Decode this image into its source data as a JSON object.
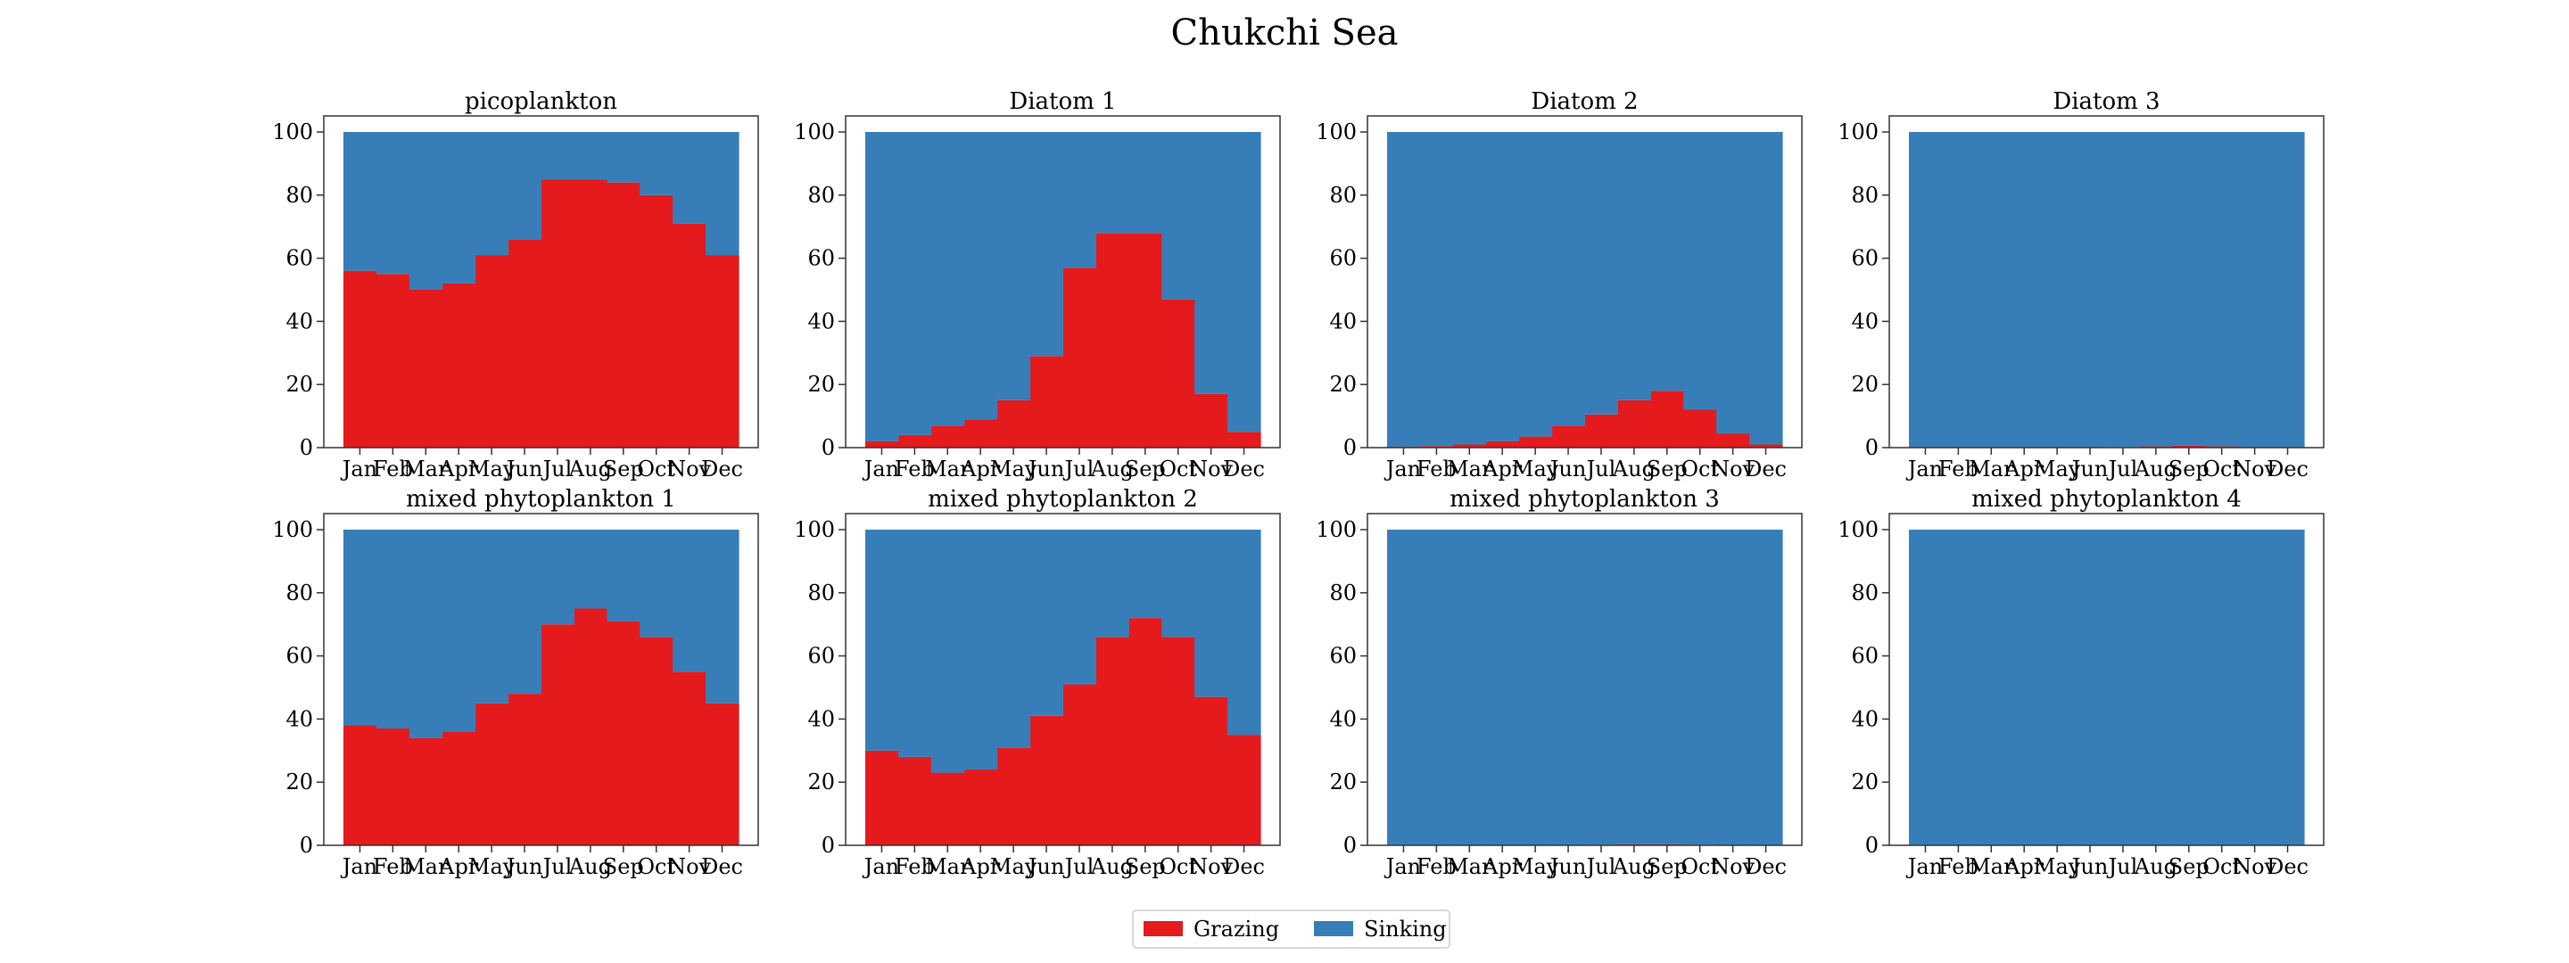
{
  "figure": {
    "title": "Chukchi Sea"
  },
  "legend": {
    "placement": "bottom-center",
    "items": [
      {
        "label": "Grazing",
        "color": "#e41a1c"
      },
      {
        "label": "Sinking",
        "color": "#377eb8"
      }
    ]
  },
  "chart_data": [
    {
      "type": "bar",
      "stacked": true,
      "title": "picoplankton",
      "categories": [
        "Jan",
        "Feb",
        "Mar",
        "Apr",
        "May",
        "Jun",
        "Jul",
        "Aug",
        "Sep",
        "Oct",
        "Nov",
        "Dec"
      ],
      "ylim": [
        0,
        100
      ],
      "yticks": [
        0,
        20,
        40,
        60,
        80,
        100
      ],
      "series": [
        {
          "name": "Grazing",
          "values": [
            56,
            55,
            50,
            52,
            61,
            66,
            85,
            85,
            84,
            80,
            71,
            61
          ]
        },
        {
          "name": "Sinking",
          "values": [
            44,
            45,
            50,
            48,
            39,
            34,
            15,
            15,
            16,
            20,
            29,
            39
          ]
        }
      ]
    },
    {
      "type": "bar",
      "stacked": true,
      "title": "Diatom 1",
      "categories": [
        "Jan",
        "Feb",
        "Mar",
        "Apr",
        "May",
        "Jun",
        "Jul",
        "Aug",
        "Sep",
        "Oct",
        "Nov",
        "Dec"
      ],
      "ylim": [
        0,
        100
      ],
      "yticks": [
        0,
        20,
        40,
        60,
        80,
        100
      ],
      "series": [
        {
          "name": "Grazing",
          "values": [
            2,
            4,
            7,
            9,
            15,
            29,
            57,
            68,
            68,
            47,
            17,
            5
          ]
        },
        {
          "name": "Sinking",
          "values": [
            98,
            96,
            93,
            91,
            85,
            71,
            43,
            32,
            32,
            53,
            83,
            95
          ]
        }
      ]
    },
    {
      "type": "bar",
      "stacked": true,
      "title": "Diatom 2",
      "categories": [
        "Jan",
        "Feb",
        "Mar",
        "Apr",
        "May",
        "Jun",
        "Jul",
        "Aug",
        "Sep",
        "Oct",
        "Nov",
        "Dec"
      ],
      "ylim": [
        0,
        100
      ],
      "yticks": [
        0,
        20,
        40,
        60,
        80,
        100
      ],
      "series": [
        {
          "name": "Grazing",
          "values": [
            0.3,
            0.5,
            1,
            2,
            3.5,
            7,
            10.5,
            15,
            18,
            12,
            4.5,
            1
          ]
        },
        {
          "name": "Sinking",
          "values": [
            99.7,
            99.5,
            99,
            98,
            96.5,
            93,
            89.5,
            85,
            82,
            88,
            95.5,
            99
          ]
        }
      ]
    },
    {
      "type": "bar",
      "stacked": true,
      "title": "Diatom 3",
      "categories": [
        "Jan",
        "Feb",
        "Mar",
        "Apr",
        "May",
        "Jun",
        "Jul",
        "Aug",
        "Sep",
        "Oct",
        "Nov",
        "Dec"
      ],
      "ylim": [
        0,
        100
      ],
      "yticks": [
        0,
        20,
        40,
        60,
        80,
        100
      ],
      "series": [
        {
          "name": "Grazing",
          "values": [
            0,
            0,
            0,
            0,
            0,
            0.1,
            0.2,
            0.4,
            0.6,
            0.4,
            0.1,
            0
          ]
        },
        {
          "name": "Sinking",
          "values": [
            100,
            100,
            100,
            100,
            100,
            99.9,
            99.8,
            99.6,
            99.4,
            99.6,
            99.9,
            100
          ]
        }
      ]
    },
    {
      "type": "bar",
      "stacked": true,
      "title": "mixed phytoplankton 1",
      "categories": [
        "Jan",
        "Feb",
        "Mar",
        "Apr",
        "May",
        "Jun",
        "Jul",
        "Aug",
        "Sep",
        "Oct",
        "Nov",
        "Dec"
      ],
      "ylim": [
        0,
        100
      ],
      "yticks": [
        0,
        20,
        40,
        60,
        80,
        100
      ],
      "series": [
        {
          "name": "Grazing",
          "values": [
            38,
            37,
            34,
            36,
            45,
            48,
            70,
            75,
            71,
            66,
            55,
            45
          ]
        },
        {
          "name": "Sinking",
          "values": [
            62,
            63,
            66,
            64,
            55,
            52,
            30,
            25,
            29,
            34,
            45,
            55
          ]
        }
      ]
    },
    {
      "type": "bar",
      "stacked": true,
      "title": "mixed phytoplankton 2",
      "categories": [
        "Jan",
        "Feb",
        "Mar",
        "Apr",
        "May",
        "Jun",
        "Jul",
        "Aug",
        "Sep",
        "Oct",
        "Nov",
        "Dec"
      ],
      "ylim": [
        0,
        100
      ],
      "yticks": [
        0,
        20,
        40,
        60,
        80,
        100
      ],
      "series": [
        {
          "name": "Grazing",
          "values": [
            30,
            28,
            23,
            24,
            31,
            41,
            51,
            66,
            72,
            66,
            47,
            35
          ]
        },
        {
          "name": "Sinking",
          "values": [
            70,
            72,
            77,
            76,
            69,
            59,
            49,
            34,
            28,
            34,
            53,
            65
          ]
        }
      ]
    },
    {
      "type": "bar",
      "stacked": true,
      "title": "mixed phytoplankton 3",
      "categories": [
        "Jan",
        "Feb",
        "Mar",
        "Apr",
        "May",
        "Jun",
        "Jul",
        "Aug",
        "Sep",
        "Oct",
        "Nov",
        "Dec"
      ],
      "ylim": [
        0,
        100
      ],
      "yticks": [
        0,
        20,
        40,
        60,
        80,
        100
      ],
      "series": [
        {
          "name": "Grazing",
          "values": [
            0,
            0,
            0,
            0,
            0,
            0.1,
            0.2,
            0.3,
            0.3,
            0.2,
            0.1,
            0
          ]
        },
        {
          "name": "Sinking",
          "values": [
            100,
            100,
            100,
            100,
            100,
            99.9,
            99.8,
            99.7,
            99.7,
            99.8,
            99.9,
            100
          ]
        }
      ]
    },
    {
      "type": "bar",
      "stacked": true,
      "title": "mixed phytoplankton 4",
      "categories": [
        "Jan",
        "Feb",
        "Mar",
        "Apr",
        "May",
        "Jun",
        "Jul",
        "Aug",
        "Sep",
        "Oct",
        "Nov",
        "Dec"
      ],
      "ylim": [
        0,
        100
      ],
      "yticks": [
        0,
        20,
        40,
        60,
        80,
        100
      ],
      "series": [
        {
          "name": "Grazing",
          "values": [
            0,
            0,
            0,
            0,
            0,
            0,
            0,
            0,
            0,
            0,
            0,
            0
          ]
        },
        {
          "name": "Sinking",
          "values": [
            100,
            100,
            100,
            100,
            100,
            100,
            100,
            100,
            100,
            100,
            100,
            100
          ]
        }
      ]
    }
  ]
}
